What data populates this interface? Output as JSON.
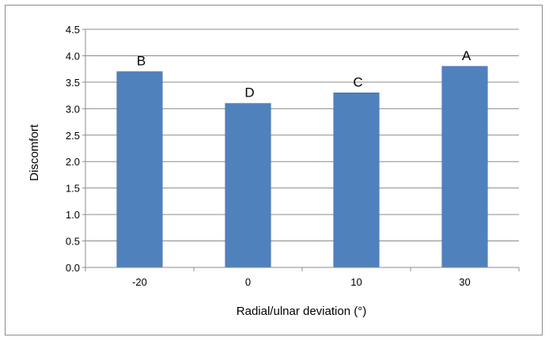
{
  "chart_data": {
    "type": "bar",
    "categories": [
      "-20",
      "0",
      "10",
      "30"
    ],
    "values": [
      3.7,
      3.1,
      3.3,
      3.8
    ],
    "data_labels": [
      "B",
      "D",
      "C",
      "A"
    ],
    "title": "",
    "xlabel": "Radial/ulnar deviation (°)",
    "ylabel": "Discomfort",
    "ylim": [
      0,
      4.5
    ],
    "yticks": [
      "0.0",
      "0.5",
      "1.0",
      "1.5",
      "2.0",
      "2.5",
      "3.0",
      "3.5",
      "4.0",
      "4.5"
    ],
    "grid": true,
    "legend": "none",
    "bar_color": "#4f81bd",
    "bar_edge_color": "#3a6aa2",
    "grid_color": "#8c8c8c"
  }
}
